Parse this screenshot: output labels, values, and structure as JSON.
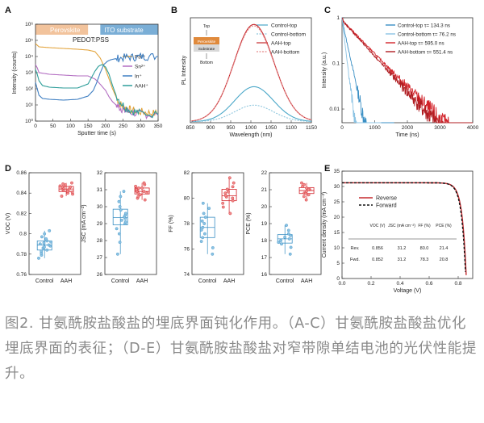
{
  "caption": "图2. 甘氨酰胺盐酸盐的埋底界面钝化作用。（A-C）甘氨酰胺盐酸盐优化埋底界面的表征；（D-E）甘氨酰胺盐酸盐对窄带隙单结电池的光伏性能提升。",
  "colors": {
    "perovskite_band": "#f2c39c",
    "ito_band": "#7aaed6",
    "control": "#3a8fc4",
    "control_light": "#8cc3e3",
    "aah": "#d2232a",
    "aah_light": "#ef8c8c"
  },
  "chart_data": [
    {
      "panel": "A",
      "type": "line",
      "xlabel": "Sputter time (s)",
      "ylabel": "Intensity (counts)",
      "xlim": [
        0,
        350
      ],
      "ylim_log10": [
        0,
        6
      ],
      "yscale": "log",
      "xticks": [
        0,
        50,
        100,
        150,
        200,
        250,
        300,
        350
      ],
      "yticks": [
        "10⁰",
        "10¹",
        "10²",
        "10³",
        "10⁴",
        "10⁵",
        "10⁶"
      ],
      "regions": [
        {
          "label": "Perovskite",
          "x": [
            0,
            150
          ]
        },
        {
          "label": "ITO substrate",
          "x": [
            185,
            350
          ]
        }
      ],
      "annotations": [
        "PEDOT:PSS"
      ],
      "legend": "center-right",
      "series": [
        {
          "name": "Pb²⁺",
          "color": "#e3a43c",
          "x": [
            0,
            5,
            10,
            40,
            80,
            120,
            150,
            170,
            185,
            200,
            210,
            220,
            230,
            240,
            250,
            260,
            270,
            290,
            310,
            330,
            350
          ],
          "log10y": [
            4.8,
            4.7,
            4.6,
            4.55,
            4.5,
            4.45,
            4.4,
            4.3,
            3.9,
            3.2,
            2.6,
            2.0,
            1.5,
            1.1,
            0.9,
            0.8,
            0.7,
            0.6,
            0.55,
            0.5,
            0.45
          ]
        },
        {
          "name": "Sn²⁺",
          "color": "#b36ec2",
          "x": [
            0,
            5,
            10,
            40,
            80,
            120,
            150,
            170,
            180,
            200,
            210,
            220,
            230,
            240,
            250,
            260,
            280,
            300,
            320,
            350
          ],
          "log10y": [
            3.5,
            3.3,
            3.0,
            2.9,
            2.85,
            2.8,
            2.8,
            2.6,
            2.4,
            1.9,
            1.5,
            1.2,
            1.0,
            0.85,
            0.7,
            0.6,
            0.5,
            0.45,
            0.4,
            0.35
          ]
        },
        {
          "name": "In⁺",
          "color": "#3f7fc2",
          "x": [
            0,
            5,
            10,
            20,
            40,
            80,
            120,
            150,
            165,
            175,
            185,
            195,
            205,
            215,
            225,
            240,
            260,
            280,
            300,
            320,
            350
          ],
          "log10y": [
            2.4,
            2.0,
            1.6,
            1.4,
            1.35,
            1.3,
            1.35,
            1.55,
            1.9,
            2.4,
            3.0,
            3.5,
            3.7,
            3.8,
            3.85,
            3.9,
            3.95,
            3.95,
            4.0,
            4.0,
            4.0
          ]
        },
        {
          "name": "AAH⁺",
          "color": "#2e9e9a",
          "x": [
            0,
            5,
            10,
            20,
            40,
            80,
            120,
            150,
            160,
            170,
            180,
            190,
            200,
            210,
            220,
            230,
            245,
            260,
            280,
            300,
            350
          ],
          "log10y": [
            3.2,
            2.9,
            2.5,
            2.2,
            2.1,
            2.05,
            2.05,
            2.3,
            2.7,
            3.1,
            3.4,
            3.5,
            3.35,
            2.9,
            2.2,
            1.6,
            1.1,
            0.8,
            0.6,
            0.5,
            0.4
          ]
        }
      ]
    },
    {
      "panel": "B",
      "type": "line",
      "xlabel": "Wavelength (nm)",
      "ylabel": "PL Intensity",
      "xlim": [
        850,
        1150
      ],
      "xticks": [
        850,
        900,
        950,
        1000,
        1050,
        1100,
        1150
      ],
      "inset_labels": [
        "Top",
        "Perovskite",
        "Substrate",
        "Bottom"
      ],
      "legend": "top-right",
      "series": [
        {
          "name": "Control-top",
          "color": "#4aa7c8",
          "dash": false,
          "peak_x": 1010,
          "peak_y": 0.36,
          "width": 48
        },
        {
          "name": "Control-bottom",
          "color": "#8fc7de",
          "dash": true,
          "peak_x": 1010,
          "peak_y": 0.17,
          "width": 48
        },
        {
          "name": "AAH-top",
          "color": "#c62a2f",
          "dash": false,
          "peak_x": 1010,
          "peak_y": 1.0,
          "width": 50
        },
        {
          "name": "AAH-bottom",
          "color": "#e58a8a",
          "dash": true,
          "peak_x": 1010,
          "peak_y": 0.985,
          "width": 50
        }
      ]
    },
    {
      "panel": "C",
      "type": "line",
      "xlabel": "Time (ns)",
      "ylabel": "Intensity (a.u.)",
      "xlim": [
        0,
        4000
      ],
      "yscale": "log",
      "ylim_log10": [
        -2.3,
        0
      ],
      "xticks": [
        0,
        1000,
        2000,
        3000,
        4000
      ],
      "yticks": [
        "1",
        "0.1",
        "0.01"
      ],
      "legend": "top-right",
      "series": [
        {
          "name": "Control-top τ= 134.3 ns",
          "color": "#3a8fc4",
          "tau": 134.3,
          "tmax": 1600
        },
        {
          "name": "Control-bottom τ= 76.2 ns",
          "color": "#8cc3e3",
          "tau": 76.2,
          "tmax": 1200
        },
        {
          "name": "AAH-top τ= 595.0 ns",
          "color": "#d2232a",
          "tau": 595.0,
          "tmax": 4000
        },
        {
          "name": "AAH-bottom τ= 551.4 ns",
          "color": "#b01d22",
          "tau": 551.4,
          "tmax": 4000
        }
      ]
    },
    {
      "panel": "D",
      "type": "box",
      "categories": [
        "Control",
        "AAH"
      ],
      "subplots": [
        {
          "ylabel": "VOC (V)",
          "ylim": [
            0.76,
            0.86
          ],
          "yticks": [
            0.76,
            0.78,
            0.8,
            0.82,
            0.84,
            0.86
          ],
          "control": [
            0.776,
            0.779,
            0.781,
            0.783,
            0.784,
            0.786,
            0.787,
            0.788,
            0.789,
            0.79,
            0.791,
            0.792,
            0.793,
            0.795,
            0.797,
            0.8,
            0.803
          ],
          "aah": [
            0.837,
            0.839,
            0.84,
            0.841,
            0.842,
            0.843,
            0.844,
            0.844,
            0.845,
            0.846,
            0.846,
            0.847,
            0.848,
            0.849,
            0.85
          ]
        },
        {
          "ylabel": "JSC (mA cm⁻²)",
          "ylim": [
            26,
            32
          ],
          "yticks": [
            26,
            27,
            28,
            29,
            30,
            31,
            32
          ],
          "control": [
            27.2,
            27.9,
            28.4,
            28.7,
            29.0,
            29.1,
            29.2,
            29.3,
            29.4,
            29.5,
            29.6,
            29.8,
            30.0,
            30.3,
            30.6,
            30.9
          ],
          "aah": [
            30.4,
            30.5,
            30.6,
            30.7,
            30.8,
            30.8,
            30.9,
            30.9,
            31.0,
            31.0,
            31.1,
            31.1,
            31.2,
            31.3,
            31.4
          ]
        },
        {
          "ylabel": "FF (%)",
          "ylim": [
            74,
            82
          ],
          "yticks": [
            74,
            76,
            78,
            80,
            82
          ],
          "control": [
            75.6,
            76.1,
            76.6,
            76.9,
            77.2,
            77.5,
            77.7,
            78.0,
            78.2,
            78.5,
            78.8,
            79.2,
            79.6
          ],
          "aah": [
            78.8,
            79.3,
            79.6,
            79.8,
            80.0,
            80.1,
            80.2,
            80.4,
            80.5,
            80.7,
            80.9,
            81.2,
            81.6
          ]
        },
        {
          "ylabel": "PCE (%)",
          "ylim": [
            16,
            22
          ],
          "yticks": [
            16,
            17,
            18,
            19,
            20,
            21,
            22
          ],
          "control": [
            17.2,
            17.6,
            17.8,
            17.9,
            18.0,
            18.1,
            18.2,
            18.3,
            18.4,
            18.6,
            18.9
          ],
          "aah": [
            20.4,
            20.6,
            20.7,
            20.8,
            20.8,
            20.9,
            21.0,
            21.0,
            21.1,
            21.2,
            21.3,
            21.4
          ]
        }
      ]
    },
    {
      "panel": "E",
      "type": "line",
      "xlabel": "Voltage (V)",
      "ylabel": "Current density (mA cm⁻²)",
      "xlim": [
        0,
        0.9
      ],
      "ylim": [
        0,
        35
      ],
      "xticks": [
        0.0,
        0.2,
        0.4,
        0.6,
        0.8
      ],
      "yticks": [
        0,
        5,
        10,
        15,
        20,
        25,
        30,
        35
      ],
      "legend": "top-center",
      "series": [
        {
          "name": "Reverse",
          "color": "#c62a2f",
          "dash": false,
          "jsc": 31.2,
          "voc": 0.856
        },
        {
          "name": "Forward",
          "color": "#111111",
          "dash": true,
          "jsc": 31.2,
          "voc": 0.852
        }
      ],
      "table": {
        "headers": [
          "",
          "VOC (V)",
          "JSC (mA cm⁻²)",
          "FF (%)",
          "PCE (%)"
        ],
        "rows": [
          [
            "Rev.",
            "0.856",
            "31.2",
            "80.0",
            "21.4"
          ],
          [
            "Fwd.",
            "0.852",
            "31.2",
            "78.3",
            "20.8"
          ]
        ]
      }
    }
  ]
}
